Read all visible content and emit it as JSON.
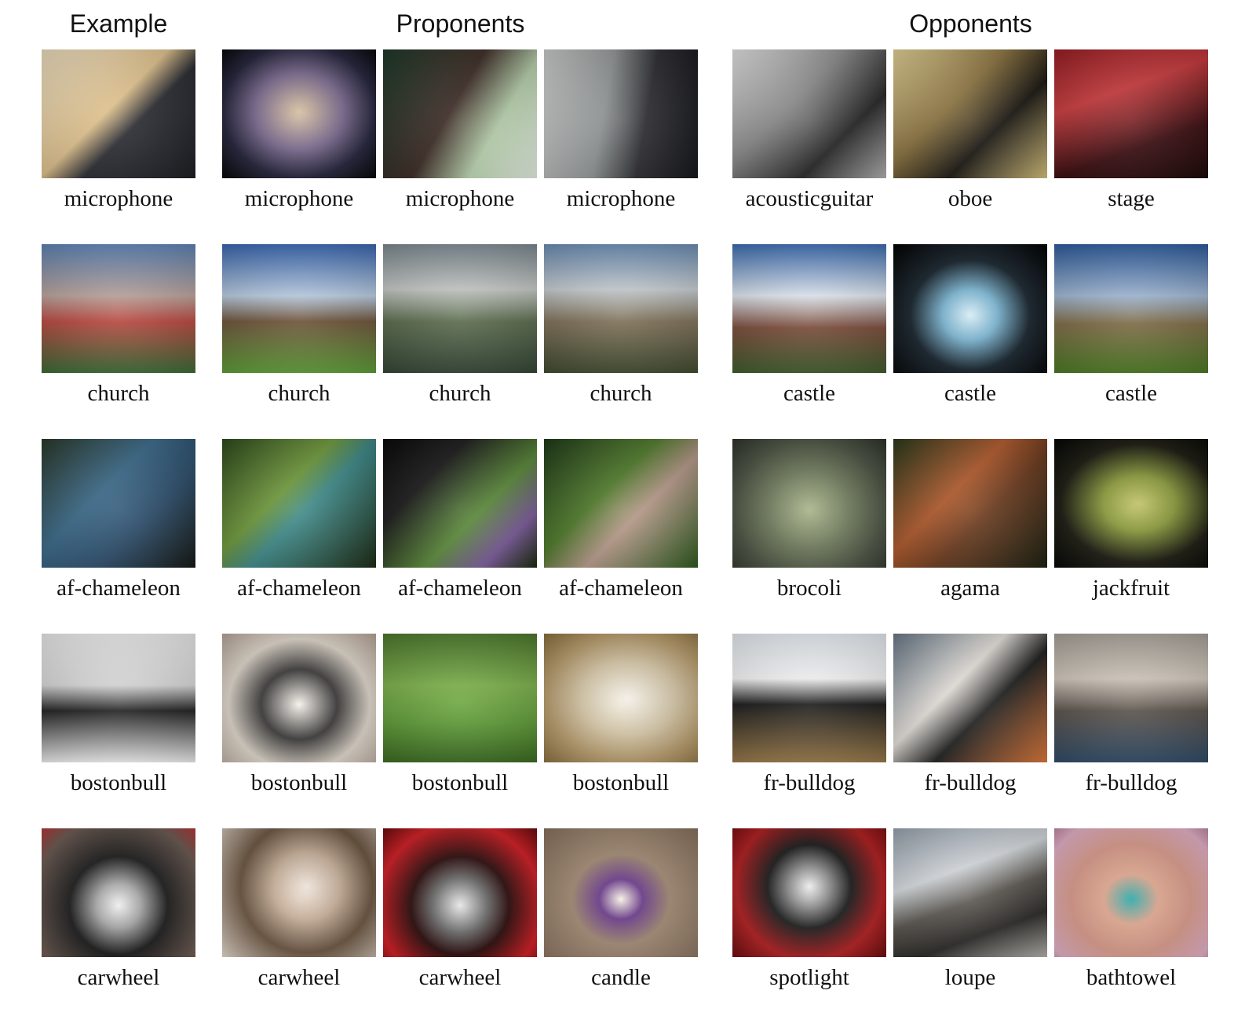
{
  "headers": {
    "example": "Example",
    "proponents": "Proponents",
    "opponents": "Opponents"
  },
  "rows": [
    {
      "example": {
        "label": "microphone",
        "bg": "linear-gradient(135deg, #f1e2c3 0%, #e2c48f 45%, #2a2c33 60%, #1b1d22 100%)"
      },
      "proponents": [
        {
          "label": "microphone",
          "bg": "radial-gradient(ellipse at 50% 48%, #d9c2a0 0%, #7b6a8f 40%, #22223a 70%, #050505 100%)"
        },
        {
          "label": "microphone",
          "bg": "linear-gradient(120deg, #1f3a2a 0%, #3b2a24 45%, #b9d3ae 70%, #e8f2e6 100%)"
        },
        {
          "label": "microphone",
          "bg": "linear-gradient(100deg, #cfcfcf 0%, #8f9494 40%, #2c2c30 65%, #14151a 100%)"
        }
      ],
      "opponents": [
        {
          "label": "acousticguitar",
          "bg": "linear-gradient(135deg, #e9e9e9 0%, #8d8d8d 40%, #262626 70%, #b5b5b5 100%)"
        },
        {
          "label": "oboe",
          "bg": "linear-gradient(135deg, #e8d79a 0%, #8c7441 40%, #1a1712 65%, #d9c37e 100%)"
        },
        {
          "label": "stage",
          "bg": "linear-gradient(160deg, #9a1f24 0%, #c73a3d 35%, #3a0d10 70%, #1a0707 100%)"
        }
      ]
    },
    {
      "example": {
        "label": "church",
        "bg": "linear-gradient(180deg, #5f86b8 0%, #b9a29a 40%, #b8473f 60%, #3a6b35 100%)"
      },
      "proponents": [
        {
          "label": "church",
          "bg": "linear-gradient(180deg, #3a68b3 0%, #b8cbe0 40%, #6c5238 60%, #5d9e36 100%)"
        },
        {
          "label": "church",
          "bg": "linear-gradient(180deg, #7e8a92 0%, #c5c8c5 35%, #5a6b4d 60%, #334534 100%)"
        },
        {
          "label": "church",
          "bg": "linear-gradient(180deg, #6d8fb6 0%, #c6cdd1 35%, #7e7058 60%, #3f4a2e 100%)"
        }
      ],
      "opponents": [
        {
          "label": "castle",
          "bg": "linear-gradient(180deg, #3d6fb4 0%, #dfe6ef 40%, #7a4b3a 65%, #3e5c2c 100%)"
        },
        {
          "label": "castle",
          "bg": "radial-gradient(ellipse at 50% 55%, #d7ecf5 0%, #7ab5d2 25%, #16222b 55%, #020202 100%)"
        },
        {
          "label": "castle",
          "bg": "linear-gradient(180deg, #2e5d9f 0%, #9fb6d2 40%, #7d6a45 62%, #4a7a22 100%)"
        }
      ]
    },
    {
      "example": {
        "label": "af-chameleon",
        "bg": "linear-gradient(135deg, #2b3a2a 0%, #3b6a8a 40%, #2c4d6b 65%, #141814 100%)"
      },
      "proponents": [
        {
          "label": "af-chameleon",
          "bg": "linear-gradient(135deg, #2f4a1c 0%, #6f9a3c 40%, #3e8a8a 55%, #1c2a12 100%)"
        },
        {
          "label": "af-chameleon",
          "bg": "linear-gradient(135deg, #0a0a0a 0%, #1b1b1b 30%, #5b8a3a 60%, #7a5a9a 80%, #1a2a0a 100%)"
        },
        {
          "label": "af-chameleon",
          "bg": "linear-gradient(135deg, #1f3a1a 0%, #4f7a2a 40%, #b79a8a 60%, #2c5a1c 100%)"
        }
      ],
      "opponents": [
        {
          "label": "brocoli",
          "bg": "radial-gradient(ellipse at 50% 55%, #a8b48a 0%, #6f7a5c 40%, #4a5242 70%, #2e332a 100%)"
        },
        {
          "label": "agama",
          "bg": "linear-gradient(135deg, #2b3a1c 0%, #b05a2c 40%, #6a3a1e 60%, #1a2010 100%)"
        },
        {
          "label": "jackfruit",
          "bg": "radial-gradient(ellipse at 55% 50%, #c3c46a 0%, #8a9a3a 30%, #1a1a10 65%, #050505 100%)"
        }
      ]
    },
    {
      "example": {
        "label": "bostonbull",
        "bg": "linear-gradient(180deg, #efefef 0%, #d8d8d8 40%, #202020 60%, #f2f2f2 100%)"
      },
      "proponents": [
        {
          "label": "bostonbull",
          "bg": "radial-gradient(ellipse at 50% 55%, #f4f1ea 0%, #3a3838 35%, #e0d8cc 65%, #b9a79a 100%)"
        },
        {
          "label": "bostonbull",
          "bg": "linear-gradient(180deg, #4e7a2e 0%, #7bb04a 40%, #5e9a36 70%, #3a6a20 100%)"
        },
        {
          "label": "bostonbull",
          "bg": "radial-gradient(ellipse at 55% 50%, #f6f2ea 0%, #d7c8a8 40%, #b69a6a 70%, #8c7040 100%)"
        }
      ],
      "opponents": [
        {
          "label": "fr-bulldog",
          "bg": "linear-gradient(180deg, #e8eef4 0%, #f6f6f6 35%, #1a1a1a 55%, #9a7a4a 100%)"
        },
        {
          "label": "fr-bulldog",
          "bg": "linear-gradient(135deg, #6a7a8a 0%, #e6e2dc 40%, #202020 60%, #e07a3a 100%)"
        },
        {
          "label": "fr-bulldog",
          "bg": "linear-gradient(180deg, #a9a39a 0%, #d2c9bd 35%, #5a524a 60%, #2f4a66 100%)"
        }
      ]
    },
    {
      "example": {
        "label": "carwheel",
        "bg": "radial-gradient(circle at 50% 60%, #f0f0f0 0%, #a8a8a8 20%, #1a1a1a 45%, #6b5a52 80%, #b83a3a 100%)"
      },
      "proponents": [
        {
          "label": "carwheel",
          "bg": "radial-gradient(circle at 55% 45%, #f3e8de 0%, #c8b09a 30%, #6a5440 60%, #eadfd2 100%)"
        },
        {
          "label": "carwheel",
          "bg": "radial-gradient(circle at 50% 60%, #e8e8e8 0%, #6a6a6a 25%, #2a0a0a 45%, #d21e24 75%, #6a0c0e 100%)"
        },
        {
          "label": "candle",
          "bg": "radial-gradient(ellipse at 50% 55%, #f6f0e2 0%, #6a3a8a 20%, #a38b74 45%, #8a7460 100%)"
        }
      ],
      "opponents": [
        {
          "label": "spotlight",
          "bg": "radial-gradient(circle at 50% 45%, #f2f2f2 0%, #8a8a8a 20%, #1a1a1a 40%, #b21e20 70%, #6a0c0e 100%)"
        },
        {
          "label": "loupe",
          "bg": "linear-gradient(160deg, #9aa6b2 0%, #d9dde1 35%, #5a5650 55%, #2a2826 75%, #b8b6b0 100%)"
        },
        {
          "label": "bathtowel",
          "bg": "radial-gradient(ellipse at 50% 55%, #2aa7a8 0%, #e0a890 25%, #d99a8a 55%, #e6b2c8 85%, #c48aa8 100%)"
        }
      ]
    }
  ]
}
